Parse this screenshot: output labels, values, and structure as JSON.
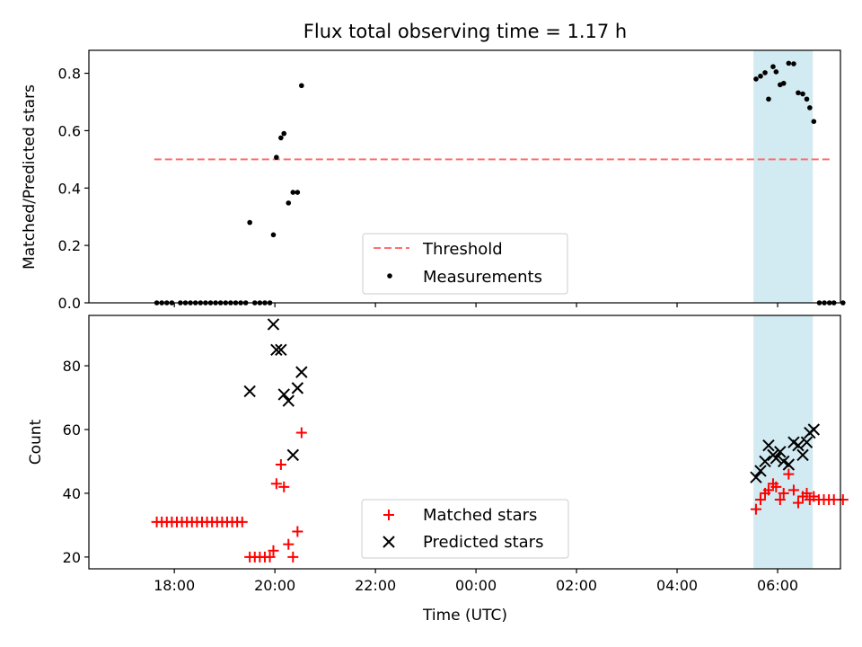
{
  "chart_data": {
    "title": "Flux total observing time = 1.17 h",
    "xlabel": "Time (UTC)",
    "x_unit": "hours since 17:00 UTC",
    "xlim": [
      -0.7,
      14.25
    ],
    "x_ticks": [
      {
        "x": 1,
        "label": "18:00"
      },
      {
        "x": 3,
        "label": "20:00"
      },
      {
        "x": 5,
        "label": "22:00"
      },
      {
        "x": 7,
        "label": "00:00"
      },
      {
        "x": 9,
        "label": "02:00"
      },
      {
        "x": 11,
        "label": "04:00"
      },
      {
        "x": 13,
        "label": "06:00"
      }
    ],
    "highlight_span": {
      "from": 12.52,
      "to": 13.7,
      "color": "#add8e6"
    },
    "panels": [
      {
        "type": "scatter",
        "ylabel": "Matched/Predicted stars",
        "ylim": [
          0,
          0.88
        ],
        "y_ticks": [
          {
            "y": 0.0,
            "label": "0.0"
          },
          {
            "y": 0.2,
            "label": "0.2"
          },
          {
            "y": 0.4,
            "label": "0.4"
          },
          {
            "y": 0.6,
            "label": "0.6"
          },
          {
            "y": 0.8,
            "label": "0.8"
          }
        ],
        "threshold": {
          "name": "Threshold",
          "value": 0.5,
          "x_from": 0.6,
          "x_to": 14.05,
          "color": "#ff6f6f"
        },
        "series": [
          {
            "name": "Measurements",
            "marker": "dot",
            "color": "#000000",
            "points": [
              [
                0.65,
                0
              ],
              [
                0.75,
                0
              ],
              [
                0.85,
                0
              ],
              [
                0.95,
                0
              ],
              [
                1.12,
                0
              ],
              [
                1.22,
                0
              ],
              [
                1.32,
                0
              ],
              [
                1.42,
                0
              ],
              [
                1.52,
                0
              ],
              [
                1.62,
                0
              ],
              [
                1.72,
                0
              ],
              [
                1.82,
                0
              ],
              [
                1.92,
                0
              ],
              [
                2.02,
                0
              ],
              [
                2.12,
                0
              ],
              [
                2.22,
                0
              ],
              [
                2.32,
                0
              ],
              [
                2.42,
                0
              ],
              [
                2.6,
                0
              ],
              [
                2.7,
                0
              ],
              [
                2.8,
                0
              ],
              [
                2.9,
                0
              ],
              [
                2.5,
                0.28
              ],
              [
                2.97,
                0.237
              ],
              [
                3.03,
                0.507
              ],
              [
                3.12,
                0.575
              ],
              [
                3.18,
                0.59
              ],
              [
                3.27,
                0.348
              ],
              [
                3.36,
                0.385
              ],
              [
                3.45,
                0.385
              ],
              [
                3.53,
                0.757
              ],
              [
                12.57,
                0.78
              ],
              [
                12.66,
                0.79
              ],
              [
                12.75,
                0.802
              ],
              [
                12.82,
                0.71
              ],
              [
                12.91,
                0.823
              ],
              [
                12.97,
                0.805
              ],
              [
                13.05,
                0.76
              ],
              [
                13.12,
                0.765
              ],
              [
                13.22,
                0.835
              ],
              [
                13.32,
                0.833
              ],
              [
                13.41,
                0.732
              ],
              [
                13.5,
                0.728
              ],
              [
                13.58,
                0.71
              ],
              [
                13.64,
                0.68
              ],
              [
                13.72,
                0.632
              ],
              [
                13.83,
                0
              ],
              [
                13.93,
                0
              ],
              [
                14.03,
                0
              ],
              [
                14.12,
                0
              ],
              [
                14.3,
                0
              ]
            ]
          }
        ]
      },
      {
        "type": "scatter",
        "ylabel": "Count",
        "ylim": [
          16.3,
          95.8
        ],
        "y_ticks": [
          {
            "y": 20,
            "label": "20"
          },
          {
            "y": 40,
            "label": "40"
          },
          {
            "y": 60,
            "label": "60"
          },
          {
            "y": 80,
            "label": "80"
          }
        ],
        "series": [
          {
            "name": "Matched stars",
            "marker": "plus",
            "color": "#ff0000",
            "points": [
              [
                0.65,
                31
              ],
              [
                0.75,
                31
              ],
              [
                0.85,
                31
              ],
              [
                0.95,
                31
              ],
              [
                1.05,
                31
              ],
              [
                1.15,
                31
              ],
              [
                1.25,
                31
              ],
              [
                1.35,
                31
              ],
              [
                1.45,
                31
              ],
              [
                1.55,
                31
              ],
              [
                1.65,
                31
              ],
              [
                1.75,
                31
              ],
              [
                1.85,
                31
              ],
              [
                1.95,
                31
              ],
              [
                2.05,
                31
              ],
              [
                2.15,
                31
              ],
              [
                2.25,
                31
              ],
              [
                2.35,
                31
              ],
              [
                2.5,
                20
              ],
              [
                2.6,
                20
              ],
              [
                2.7,
                20
              ],
              [
                2.8,
                20
              ],
              [
                2.9,
                20
              ],
              [
                2.97,
                22
              ],
              [
                3.03,
                43
              ],
              [
                3.12,
                49
              ],
              [
                3.18,
                42
              ],
              [
                3.27,
                24
              ],
              [
                3.36,
                20
              ],
              [
                3.45,
                28
              ],
              [
                3.53,
                59
              ],
              [
                12.57,
                35
              ],
              [
                12.66,
                38
              ],
              [
                12.75,
                40
              ],
              [
                12.82,
                41
              ],
              [
                12.91,
                43
              ],
              [
                12.97,
                42
              ],
              [
                13.05,
                38
              ],
              [
                13.12,
                40
              ],
              [
                13.22,
                46
              ],
              [
                13.32,
                41
              ],
              [
                13.41,
                37
              ],
              [
                13.5,
                39
              ],
              [
                13.58,
                40
              ],
              [
                13.64,
                38
              ],
              [
                13.72,
                39
              ],
              [
                13.82,
                38
              ],
              [
                13.92,
                38
              ],
              [
                14.02,
                38
              ],
              [
                14.12,
                38
              ],
              [
                14.3,
                38
              ]
            ]
          },
          {
            "name": "Predicted stars",
            "marker": "x",
            "color": "#000000",
            "points": [
              [
                2.5,
                72
              ],
              [
                2.97,
                93
              ],
              [
                3.03,
                85
              ],
              [
                3.12,
                85
              ],
              [
                3.18,
                71
              ],
              [
                3.27,
                69
              ],
              [
                3.36,
                52
              ],
              [
                3.45,
                73
              ],
              [
                3.53,
                78
              ],
              [
                12.57,
                45
              ],
              [
                12.66,
                47
              ],
              [
                12.75,
                50
              ],
              [
                12.82,
                55
              ],
              [
                12.91,
                52
              ],
              [
                12.97,
                51
              ],
              [
                13.05,
                53
              ],
              [
                13.12,
                50
              ],
              [
                13.22,
                49
              ],
              [
                13.32,
                56
              ],
              [
                13.41,
                55
              ],
              [
                13.5,
                52
              ],
              [
                13.58,
                56
              ],
              [
                13.64,
                59
              ],
              [
                13.72,
                60
              ]
            ]
          }
        ]
      }
    ]
  }
}
